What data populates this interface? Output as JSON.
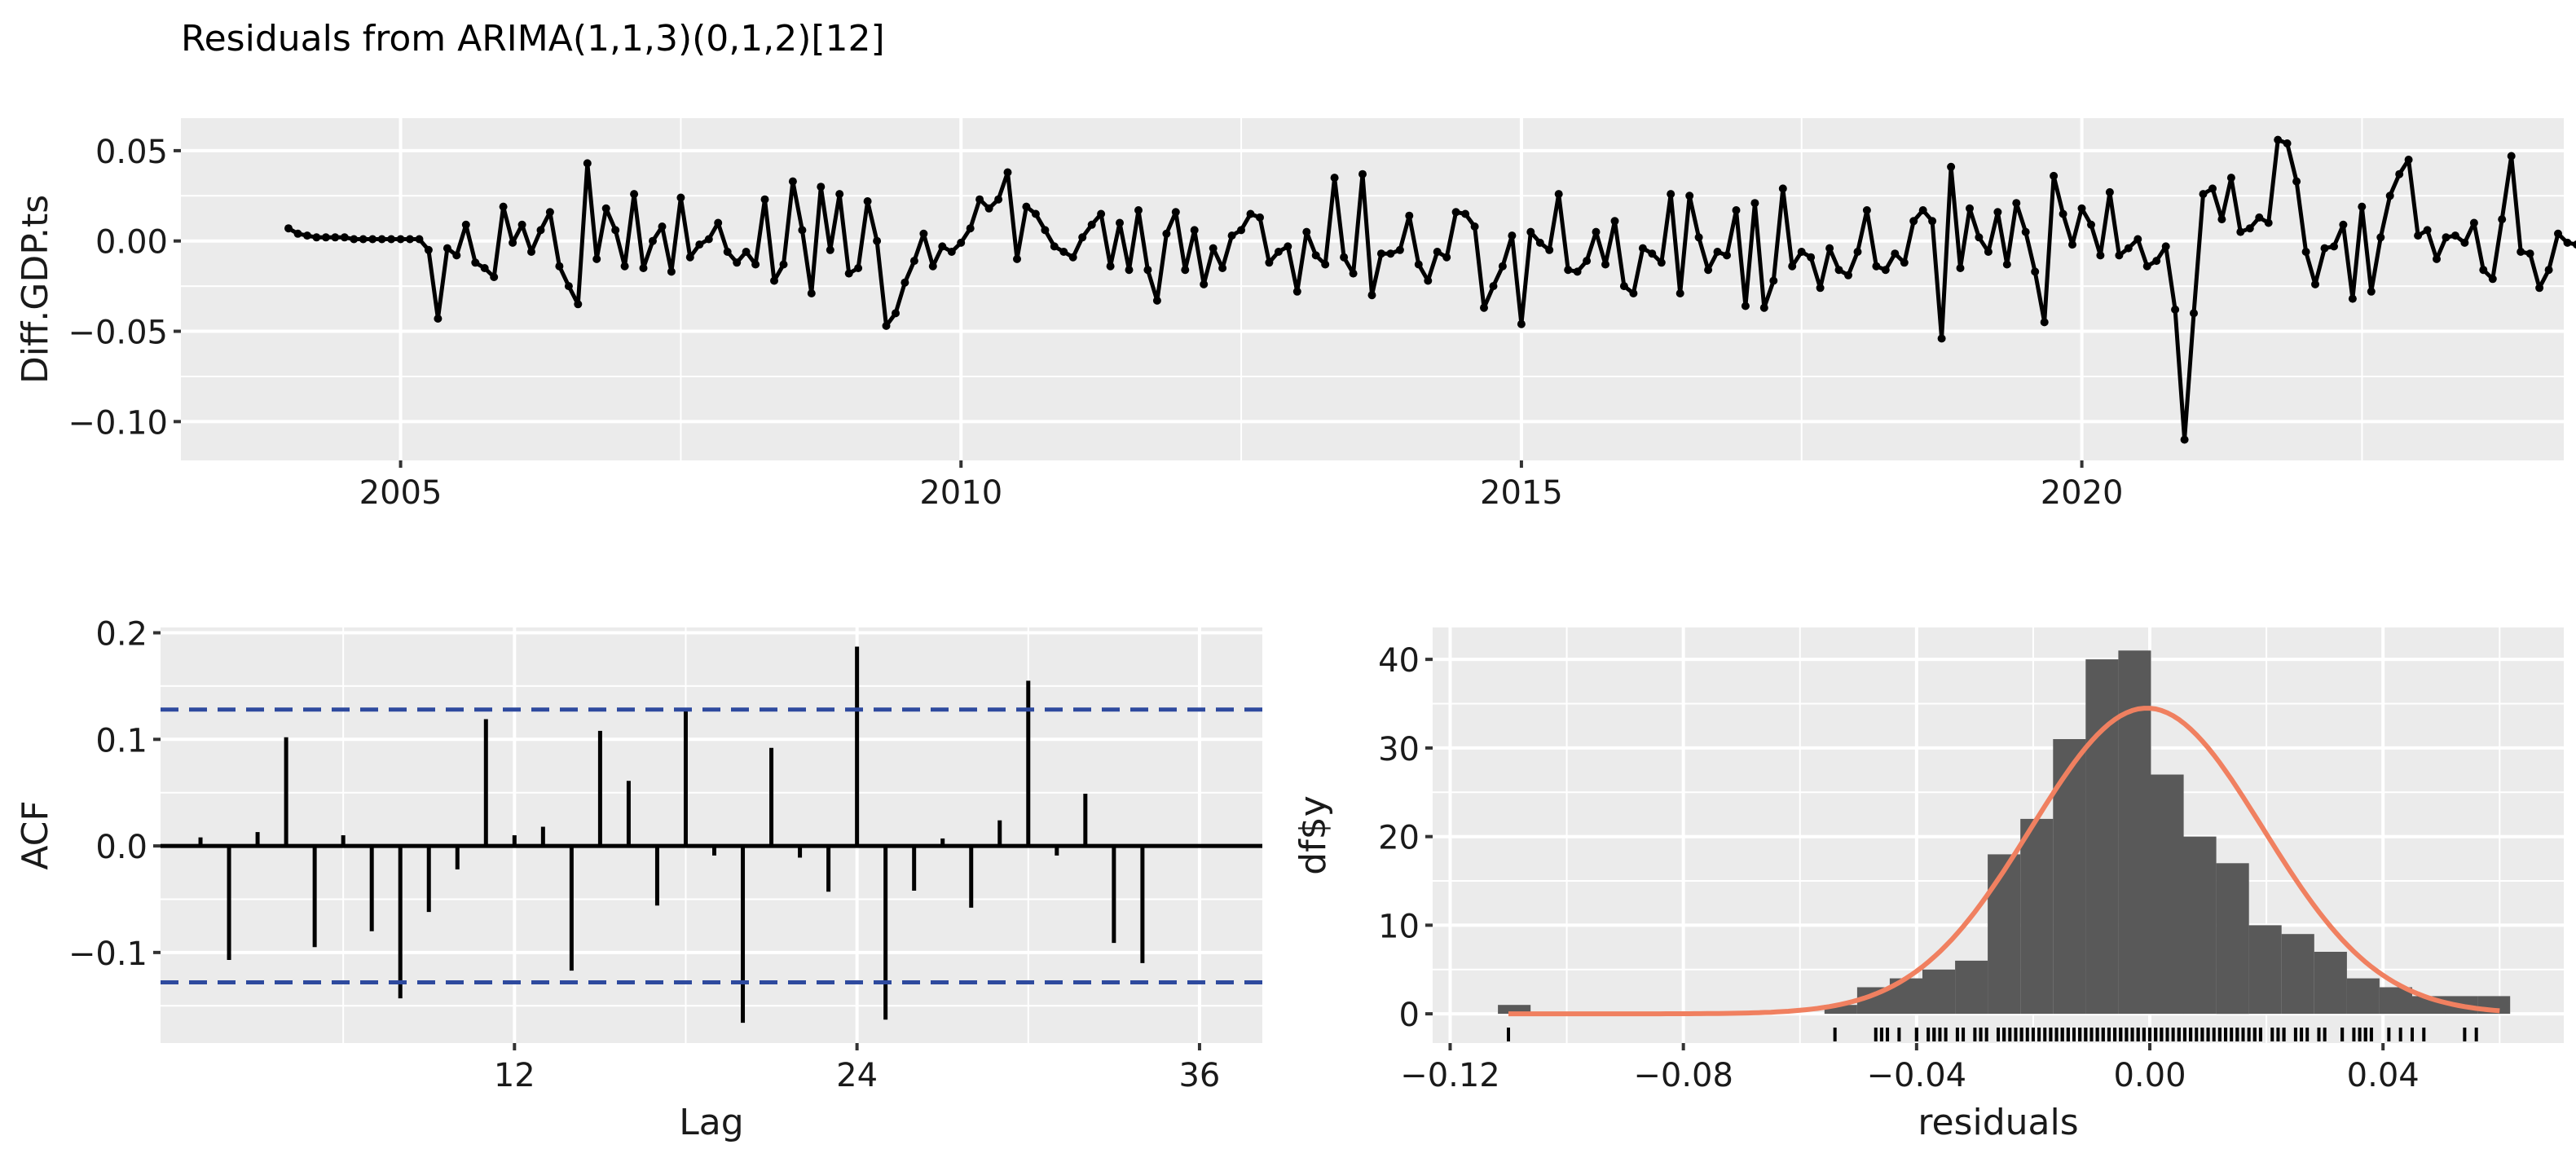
{
  "title": "Residuals from ARIMA(1,1,3)(0,1,2)[12]",
  "colors": {
    "panel_bg": "#EBEBEB",
    "grid": "#FFFFFF",
    "line": "#000000",
    "ci_line": "#2E4A9E",
    "hist_fill": "#595959",
    "density": "#F08060",
    "text": "#1A1A1A",
    "tick_text": "#1A1A1A"
  },
  "chart_data": [
    {
      "type": "line",
      "ylabel": "Diff.GDP.ts",
      "xlabel": "",
      "xlim": [
        2003.04,
        2024.3
      ],
      "ylim": [
        -0.1215,
        0.068
      ],
      "x_ticks": [
        2005,
        2010,
        2015,
        2020
      ],
      "x_tick_labels": [
        "2005",
        "2010",
        "2015",
        "2020"
      ],
      "y_ticks": [
        0.05,
        0.0,
        -0.05,
        -0.1
      ],
      "y_tick_labels": [
        "0.05",
        "0.00",
        "-0.05",
        "-0.10"
      ],
      "x_start": 2004.0,
      "x_step": 0.08333,
      "values": [
        0.007,
        0.004,
        0.003,
        0.002,
        0.002,
        0.002,
        0.002,
        0.001,
        0.001,
        0.001,
        0.001,
        0.001,
        0.001,
        0.001,
        0.001,
        -0.005,
        -0.043,
        -0.004,
        -0.008,
        0.009,
        -0.012,
        -0.015,
        -0.02,
        0.019,
        -0.001,
        0.009,
        -0.006,
        0.006,
        0.016,
        -0.014,
        -0.025,
        -0.035,
        0.043,
        -0.01,
        0.018,
        0.006,
        -0.014,
        0.026,
        -0.015,
        0.0,
        0.008,
        -0.017,
        0.024,
        -0.009,
        -0.002,
        0.001,
        0.01,
        -0.006,
        -0.012,
        -0.006,
        -0.013,
        0.023,
        -0.022,
        -0.013,
        0.033,
        0.006,
        -0.029,
        0.03,
        -0.005,
        0.026,
        -0.018,
        -0.015,
        0.022,
        0.0,
        -0.047,
        -0.04,
        -0.023,
        -0.011,
        0.004,
        -0.014,
        -0.003,
        -0.006,
        -0.001,
        0.007,
        0.023,
        0.018,
        0.023,
        0.038,
        -0.01,
        0.019,
        0.015,
        0.006,
        -0.003,
        -0.006,
        -0.009,
        0.002,
        0.009,
        0.015,
        -0.014,
        0.01,
        -0.016,
        0.017,
        -0.016,
        -0.033,
        0.004,
        0.016,
        -0.016,
        0.006,
        -0.024,
        -0.004,
        -0.015,
        0.003,
        0.006,
        0.015,
        0.013,
        -0.012,
        -0.006,
        -0.003,
        -0.028,
        0.005,
        -0.008,
        -0.013,
        0.035,
        -0.009,
        -0.018,
        0.037,
        -0.03,
        -0.007,
        -0.007,
        -0.005,
        0.014,
        -0.013,
        -0.022,
        -0.006,
        -0.009,
        0.016,
        0.015,
        0.008,
        -0.037,
        -0.025,
        -0.014,
        0.003,
        -0.046,
        0.005,
        -0.001,
        -0.005,
        0.026,
        -0.016,
        -0.017,
        -0.011,
        0.005,
        -0.013,
        0.011,
        -0.025,
        -0.029,
        -0.004,
        -0.007,
        -0.012,
        0.026,
        -0.029,
        0.025,
        0.002,
        -0.016,
        -0.006,
        -0.008,
        0.017,
        -0.036,
        0.021,
        -0.037,
        -0.022,
        0.029,
        -0.014,
        -0.006,
        -0.009,
        -0.026,
        -0.004,
        -0.016,
        -0.019,
        -0.006,
        0.017,
        -0.014,
        -0.016,
        -0.007,
        -0.012,
        0.011,
        0.017,
        0.011,
        -0.054,
        0.041,
        -0.015,
        0.018,
        0.002,
        -0.006,
        0.016,
        -0.013,
        0.021,
        0.005,
        -0.017,
        -0.045,
        0.036,
        0.015,
        -0.002,
        0.018,
        0.009,
        -0.008,
        0.027,
        -0.008,
        -0.004,
        0.001,
        -0.014,
        -0.011,
        -0.003,
        -0.038,
        -0.11,
        -0.04,
        0.026,
        0.029,
        0.012,
        0.035,
        0.005,
        0.007,
        0.013,
        0.01,
        0.056,
        0.054,
        0.033,
        -0.006,
        -0.024,
        -0.004,
        -0.003,
        0.009,
        -0.032,
        0.019,
        -0.028,
        0.002,
        0.025,
        0.037,
        0.045,
        0.003,
        0.006,
        -0.01,
        0.002,
        0.003,
        -0.001,
        0.01,
        -0.016,
        -0.021,
        0.012,
        0.047,
        -0.006,
        -0.007,
        -0.026,
        -0.016,
        0.004,
        -0.001,
        -0.002,
        0.001,
        -0.011
      ]
    },
    {
      "type": "bar",
      "ylabel": "ACF",
      "xlabel": "Lag",
      "xlim": [
        -0.4,
        38.2
      ],
      "ylim": [
        -0.185,
        0.205
      ],
      "x_ticks": [
        12,
        24,
        36
      ],
      "x_tick_labels": [
        "12",
        "24",
        "36"
      ],
      "y_ticks": [
        0.2,
        0.1,
        0.0,
        -0.1
      ],
      "y_tick_labels": [
        "0.2",
        "0.1",
        "0.0",
        "-0.1"
      ],
      "conf_limit": 0.128,
      "lags": [
        1,
        2,
        3,
        4,
        5,
        6,
        7,
        8,
        9,
        10,
        11,
        12,
        13,
        14,
        15,
        16,
        17,
        18,
        19,
        20,
        21,
        22,
        23,
        24,
        25,
        26,
        27,
        28,
        29,
        30,
        31,
        32,
        33,
        34,
        35,
        36
      ],
      "values": [
        0.008,
        -0.107,
        0.013,
        0.102,
        -0.095,
        0.01,
        -0.08,
        -0.143,
        -0.062,
        -0.022,
        0.119,
        0.01,
        0.018,
        -0.117,
        0.108,
        0.061,
        -0.056,
        0.128,
        -0.009,
        -0.166,
        0.092,
        -0.011,
        -0.043,
        0.187,
        -0.163,
        -0.042,
        0.007,
        -0.058,
        0.024,
        0.155,
        -0.009,
        0.049,
        -0.091,
        -0.11,
        0.0,
        0.0
      ]
    },
    {
      "type": "histogram",
      "ylabel": "df$y",
      "xlabel": "residuals",
      "xlim": [
        -0.123,
        0.071
      ],
      "ylim": [
        -3.3,
        43.6
      ],
      "x_ticks": [
        -0.12,
        -0.08,
        -0.04,
        0.0,
        0.04
      ],
      "x_tick_labels": [
        "-0.12",
        "-0.08",
        "-0.04",
        "0.00",
        "0.04"
      ],
      "y_ticks": [
        0,
        10,
        20,
        30,
        40
      ],
      "y_tick_labels": [
        "0",
        "10",
        "20",
        "30",
        "40"
      ],
      "bin_width": 0.0056,
      "bin_starts": [
        -0.1118,
        -0.0558,
        -0.0502,
        -0.0446,
        -0.039,
        -0.0334,
        -0.0278,
        -0.0222,
        -0.0166,
        -0.011,
        -0.0054,
        0.0002,
        0.0058,
        0.0114,
        0.017,
        0.0226,
        0.0282,
        0.0338,
        0.0394,
        0.045,
        0.0506,
        0.0562
      ],
      "counts": [
        1,
        1,
        3,
        4,
        5,
        6,
        18,
        22,
        31,
        40,
        41,
        27,
        20,
        17,
        10,
        9,
        7,
        4,
        3,
        2,
        2,
        2
      ],
      "density": {
        "mean": -0.0005,
        "sd": 0.0199,
        "peak": 34.5
      },
      "rug": [
        -0.11,
        -0.054,
        -0.047,
        -0.046,
        -0.045,
        -0.043,
        -0.04,
        -0.04,
        -0.038,
        -0.037,
        -0.037,
        -0.036,
        -0.035,
        -0.033,
        -0.032,
        -0.03,
        -0.029,
        -0.029,
        -0.028,
        -0.026,
        -0.025,
        -0.025,
        -0.024,
        -0.023,
        -0.022,
        -0.022,
        -0.021,
        -0.02,
        -0.019,
        -0.018,
        -0.017,
        -0.017,
        -0.016,
        -0.016,
        -0.016,
        -0.015,
        -0.015,
        -0.014,
        -0.014,
        -0.013,
        -0.013,
        -0.012,
        -0.012,
        -0.011,
        -0.011,
        -0.01,
        -0.01,
        -0.009,
        -0.009,
        -0.008,
        -0.008,
        -0.007,
        -0.007,
        -0.006,
        -0.006,
        -0.005,
        -0.005,
        -0.004,
        -0.004,
        -0.003,
        -0.003,
        -0.002,
        -0.002,
        -0.001,
        -0.001,
        0.0,
        0.001,
        0.001,
        0.002,
        0.002,
        0.003,
        0.003,
        0.004,
        0.005,
        0.005,
        0.006,
        0.006,
        0.007,
        0.007,
        0.008,
        0.009,
        0.009,
        0.01,
        0.01,
        0.011,
        0.012,
        0.012,
        0.013,
        0.013,
        0.014,
        0.015,
        0.015,
        0.016,
        0.016,
        0.017,
        0.018,
        0.018,
        0.019,
        0.019,
        0.021,
        0.022,
        0.023,
        0.023,
        0.025,
        0.026,
        0.026,
        0.027,
        0.029,
        0.029,
        0.03,
        0.033,
        0.033,
        0.035,
        0.036,
        0.037,
        0.037,
        0.038,
        0.041,
        0.043,
        0.045,
        0.047,
        0.054,
        0.056
      ]
    }
  ]
}
